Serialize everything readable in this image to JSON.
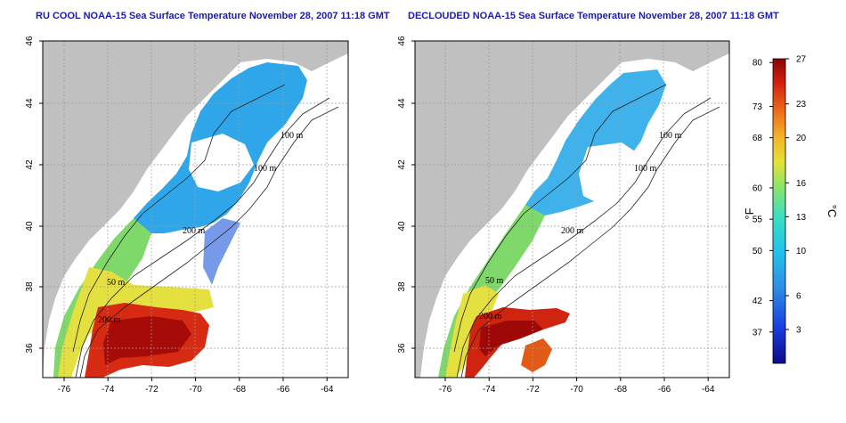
{
  "panels": [
    {
      "id": "left",
      "title": "RU COOL NOAA-15 Sea Surface Temperature November 28, 2007 11:18 GMT",
      "x_ticks": [
        "-76",
        "-74",
        "-72",
        "-70",
        "-68",
        "-66",
        "-64"
      ],
      "y_ticks": [
        "46",
        "44",
        "42",
        "40",
        "38",
        "36"
      ],
      "contour_labels": [
        "100 m",
        "100 m",
        "200 m",
        "50 m",
        "200 m",
        "50 m",
        "200 m"
      ]
    },
    {
      "id": "right",
      "title": "DECLOUDED NOAA-15 Sea Surface Temperature November 28, 2007 11:18 GMT",
      "x_ticks": [
        "-76",
        "-74",
        "-72",
        "-70",
        "-68",
        "-66",
        "-64"
      ],
      "y_ticks": [
        "46",
        "44",
        "42",
        "40",
        "38",
        "36"
      ],
      "contour_labels": [
        "100 m",
        "100 m",
        "200 m",
        "50 m",
        "200 m",
        "50 m",
        "200 m"
      ]
    }
  ],
  "colorbar": {
    "f_unit": "°F",
    "c_unit": "°C",
    "f_ticks": [
      "80",
      "73",
      "68",
      "60",
      "55",
      "50",
      "42",
      "37"
    ],
    "c_ticks": [
      "27",
      "23",
      "20",
      "16",
      "13",
      "10",
      "6",
      "3"
    ],
    "c_range": [
      0,
      27
    ]
  },
  "colors": {
    "land": "#c0c0c0",
    "cloud": "#ffffff",
    "grid": "#9a9a9a",
    "title": "#1b1bb0"
  }
}
